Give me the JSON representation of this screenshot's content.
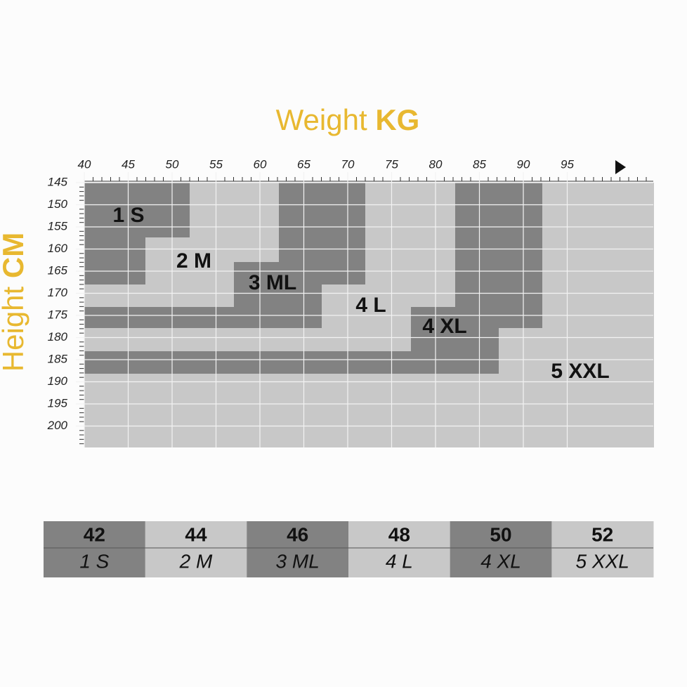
{
  "header": {
    "title": "Weight",
    "title_unit": "KG"
  },
  "y_title": {
    "text": "Height",
    "unit": "CM"
  },
  "x_ticks": [
    40,
    45,
    50,
    55,
    60,
    65,
    70,
    75,
    80,
    85,
    90,
    95
  ],
  "y_ticks": [
    145,
    150,
    155,
    160,
    165,
    170,
    175,
    180,
    185,
    190,
    195,
    200
  ],
  "zones": [
    {
      "label": "1 S"
    },
    {
      "label": "2 M"
    },
    {
      "label": "3 ML"
    },
    {
      "label": "4 L"
    },
    {
      "label": "4 XL"
    },
    {
      "label": "5 XXL"
    }
  ],
  "table": {
    "columns": [
      {
        "size": "42",
        "label": "1 S"
      },
      {
        "size": "44",
        "label": "2 M"
      },
      {
        "size": "46",
        "label": "3 ML"
      },
      {
        "size": "48",
        "label": "4 L"
      },
      {
        "size": "50",
        "label": "4 XL"
      },
      {
        "size": "52",
        "label": "5 XXL"
      }
    ]
  }
}
